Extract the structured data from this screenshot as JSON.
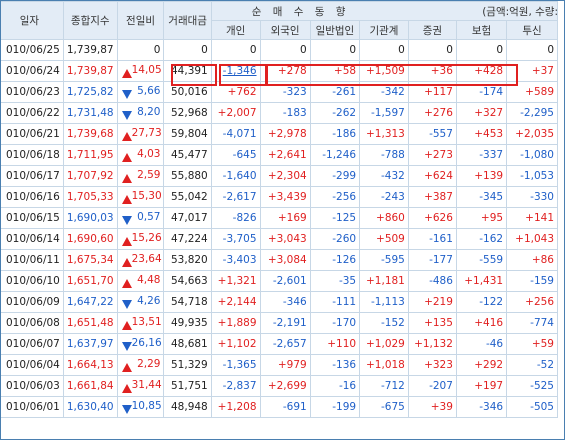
{
  "headers": {
    "date": "일자",
    "index": "종합지수",
    "change": "전일비",
    "volume": "거래대금",
    "group": "순 매 수 동 향",
    "unit": "(금액:억원, 수량:",
    "investors": [
      "개인",
      "외국인",
      "일반법인",
      "기관계",
      "증권",
      "보험",
      "투신"
    ]
  },
  "rows": [
    {
      "date": "010/06/25",
      "index": "1,739,87",
      "dir": "flat",
      "change": "0",
      "volume": "0",
      "vals": [
        "0",
        "0",
        "0",
        "0",
        "0",
        "0",
        "0"
      ]
    },
    {
      "date": "010/06/24",
      "index": "1,739,87",
      "dir": "up",
      "change": "14,05",
      "volume": "44,391",
      "vals": [
        "-1,346",
        "+278",
        "+58",
        "+1,509",
        "+36",
        "+428",
        "+37"
      ]
    },
    {
      "date": "010/06/23",
      "index": "1,725,82",
      "dir": "dn",
      "change": "5,66",
      "volume": "50,016",
      "vals": [
        "+762",
        "-323",
        "-261",
        "-342",
        "+117",
        "-174",
        "+589"
      ]
    },
    {
      "date": "010/06/22",
      "index": "1,731,48",
      "dir": "dn",
      "change": "8,20",
      "volume": "52,968",
      "vals": [
        "+2,007",
        "-183",
        "-262",
        "-1,597",
        "+276",
        "+327",
        "-2,295"
      ]
    },
    {
      "date": "010/06/21",
      "index": "1,739,68",
      "dir": "up",
      "change": "27,73",
      "volume": "59,804",
      "vals": [
        "-4,071",
        "+2,978",
        "-186",
        "+1,313",
        "-557",
        "+453",
        "+2,035"
      ]
    },
    {
      "date": "010/06/18",
      "index": "1,711,95",
      "dir": "up",
      "change": "4,03",
      "volume": "45,477",
      "vals": [
        "-645",
        "+2,641",
        "-1,246",
        "-788",
        "+273",
        "-337",
        "-1,080"
      ]
    },
    {
      "date": "010/06/17",
      "index": "1,707,92",
      "dir": "up",
      "change": "2,59",
      "volume": "55,880",
      "vals": [
        "-1,640",
        "+2,304",
        "-299",
        "-432",
        "+624",
        "+139",
        "-1,053"
      ]
    },
    {
      "date": "010/06/16",
      "index": "1,705,33",
      "dir": "up",
      "change": "15,30",
      "volume": "55,042",
      "vals": [
        "-2,617",
        "+3,439",
        "-256",
        "-243",
        "+387",
        "-345",
        "-330"
      ]
    },
    {
      "date": "010/06/15",
      "index": "1,690,03",
      "dir": "dn",
      "change": "0,57",
      "volume": "47,017",
      "vals": [
        "-826",
        "+169",
        "-125",
        "+860",
        "+626",
        "+95",
        "+141"
      ]
    },
    {
      "date": "010/06/14",
      "index": "1,690,60",
      "dir": "up",
      "change": "15,26",
      "volume": "47,224",
      "vals": [
        "-3,705",
        "+3,043",
        "-260",
        "+509",
        "-161",
        "-162",
        "+1,043"
      ]
    },
    {
      "date": "010/06/11",
      "index": "1,675,34",
      "dir": "up",
      "change": "23,64",
      "volume": "53,820",
      "vals": [
        "-3,403",
        "+3,084",
        "-126",
        "-595",
        "-177",
        "-559",
        "+86"
      ]
    },
    {
      "date": "010/06/10",
      "index": "1,651,70",
      "dir": "up",
      "change": "4,48",
      "volume": "54,663",
      "vals": [
        "+1,321",
        "-2,601",
        "-35",
        "+1,181",
        "-486",
        "+1,431",
        "-159"
      ]
    },
    {
      "date": "010/06/09",
      "index": "1,647,22",
      "dir": "dn",
      "change": "4,26",
      "volume": "54,718",
      "vals": [
        "+2,144",
        "-346",
        "-111",
        "-1,113",
        "+219",
        "-122",
        "+256"
      ]
    },
    {
      "date": "010/06/08",
      "index": "1,651,48",
      "dir": "up",
      "change": "13,51",
      "volume": "49,935",
      "vals": [
        "+1,889",
        "-2,191",
        "-170",
        "-152",
        "+135",
        "+416",
        "-774"
      ]
    },
    {
      "date": "010/06/07",
      "index": "1,637,97",
      "dir": "dn",
      "change": "26,16",
      "volume": "48,681",
      "vals": [
        "+1,102",
        "-2,657",
        "+110",
        "+1,029",
        "+1,132",
        "-46",
        "+59"
      ]
    },
    {
      "date": "010/06/04",
      "index": "1,664,13",
      "dir": "up",
      "change": "2,29",
      "volume": "51,329",
      "vals": [
        "-1,365",
        "+979",
        "-136",
        "+1,018",
        "+323",
        "+292",
        "-52"
      ]
    },
    {
      "date": "010/06/03",
      "index": "1,661,84",
      "dir": "up",
      "change": "31,44",
      "volume": "51,751",
      "vals": [
        "-2,837",
        "+2,699",
        "-16",
        "-712",
        "-207",
        "+197",
        "-525"
      ]
    },
    {
      "date": "010/06/01",
      "index": "1,630,40",
      "dir": "dn",
      "change": "10,85",
      "volume": "48,948",
      "vals": [
        "+1,208",
        "-691",
        "-199",
        "-675",
        "+39",
        "-346",
        "-505"
      ]
    }
  ],
  "colors": {
    "up": "#e02020",
    "down": "#1f5fc8",
    "header_bg": "#e3ecf6",
    "grid": "#c7d7e6",
    "highlight": "#e02020"
  }
}
